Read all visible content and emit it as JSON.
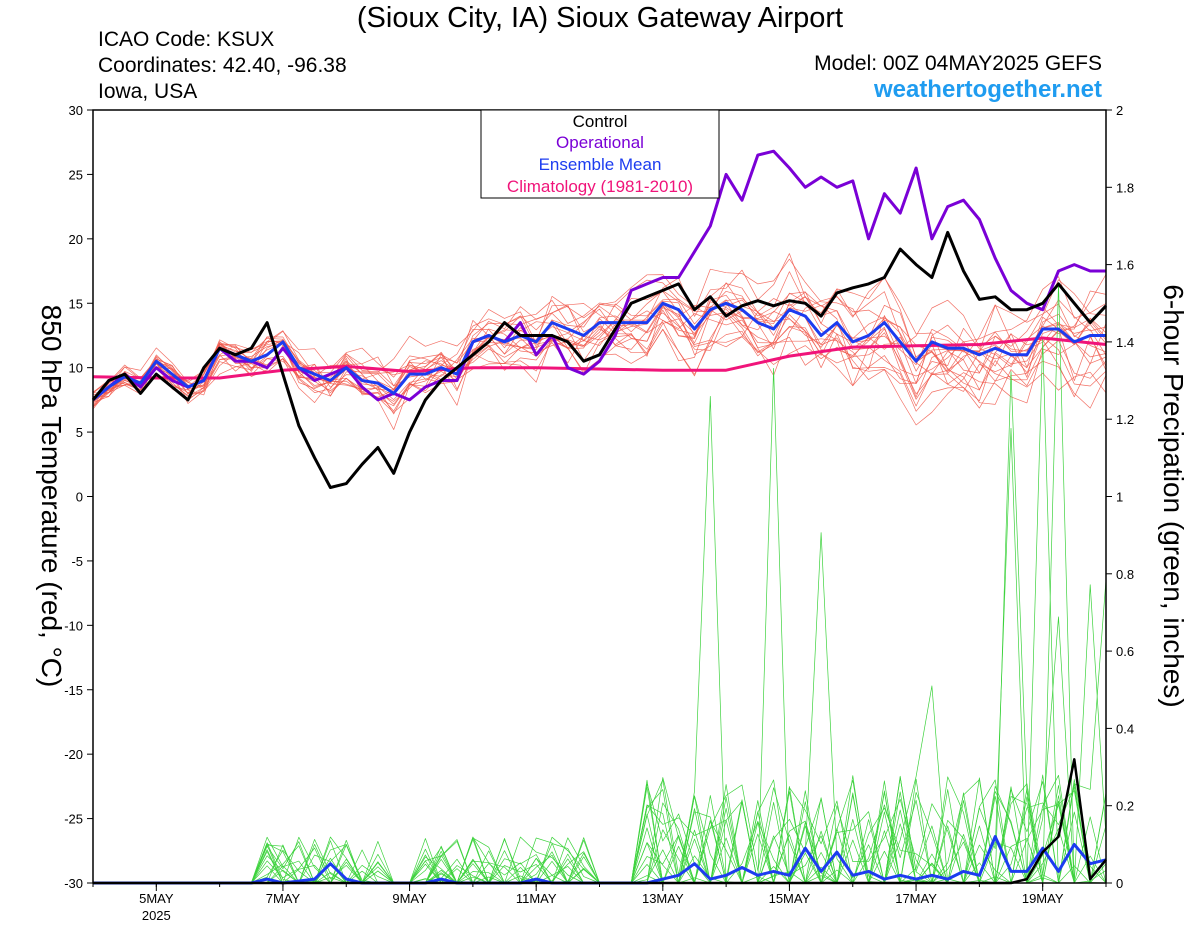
{
  "header": {
    "title": "(Sioux City, IA) Sioux Gateway Airport",
    "icao": "ICAO Code: KSUX",
    "coordinates": "Coordinates: 42.40, -96.38",
    "location": "Iowa, USA",
    "model": "Model: 00Z 04MAY2025 GEFS",
    "website": "weathertogether.net"
  },
  "colors": {
    "control": "#000000",
    "operational": "#7a00d6",
    "ensemble_mean": "#1c3cf0",
    "climatology": "#f0147a",
    "members_temp": "#f0574a",
    "members_precip": "#3cd23c",
    "website": "#1f9cf0"
  },
  "chart_data": {
    "type": "line",
    "x_axis": {
      "unit": "hours since 00Z 04MAY2025",
      "range": [
        0,
        384
      ],
      "ticks": [
        {
          "value": 24,
          "label": "5MAY",
          "sublabel": "2025"
        },
        {
          "value": 72,
          "label": "7MAY"
        },
        {
          "value": 120,
          "label": "9MAY"
        },
        {
          "value": 168,
          "label": "11MAY"
        },
        {
          "value": 216,
          "label": "13MAY"
        },
        {
          "value": 264,
          "label": "15MAY"
        },
        {
          "value": 312,
          "label": "17MAY"
        },
        {
          "value": 360,
          "label": "19MAY"
        }
      ]
    },
    "y_left": {
      "label": "850 hPa Temperature (red, °C)",
      "range": [
        -30,
        30
      ],
      "ticks": [
        "-30",
        "-25",
        "-20",
        "-15",
        "-10",
        "-5",
        "0",
        "5",
        "10",
        "15",
        "20",
        "25",
        "30"
      ]
    },
    "y_right": {
      "label": "6-hour Precipation (green, inches)",
      "range": [
        0,
        2
      ],
      "ticks": [
        "0",
        "0.2",
        "0.4",
        "0.6",
        "0.8",
        "1",
        "1.2",
        "1.4",
        "1.6",
        "1.8",
        "2"
      ]
    },
    "legend": {
      "placement": "top-center",
      "entries": [
        "Control",
        "Operational",
        "Ensemble Mean",
        "Climatology (1981-2010)"
      ]
    },
    "temperature_series": [
      {
        "name": "Control",
        "x": [
          0,
          6,
          12,
          18,
          24,
          30,
          36,
          42,
          48,
          54,
          60,
          66,
          72,
          78,
          84,
          90,
          96,
          102,
          108,
          114,
          120,
          126,
          132,
          138,
          144,
          150,
          156,
          162,
          168,
          174,
          180,
          186,
          192,
          198,
          204,
          210,
          216,
          222,
          228,
          234,
          240,
          246,
          252,
          258,
          264,
          270,
          276,
          282,
          288,
          294,
          300,
          306,
          312,
          318,
          324,
          330,
          336,
          342,
          348,
          354,
          360,
          366,
          372,
          378,
          384
        ],
        "y": [
          7.5,
          9.0,
          9.5,
          8.0,
          9.5,
          8.5,
          7.5,
          10.0,
          11.5,
          11.0,
          11.5,
          13.5,
          9.5,
          5.5,
          3.0,
          0.7,
          1.0,
          2.5,
          3.8,
          1.8,
          5.0,
          7.5,
          9.0,
          10.0,
          11.0,
          12.0,
          13.5,
          12.5,
          12.5,
          12.5,
          12.0,
          10.5,
          11.0,
          13.0,
          15.0,
          15.5,
          16.0,
          16.5,
          14.5,
          15.5,
          14.0,
          14.8,
          15.2,
          14.8,
          15.2,
          15.0,
          14.0,
          15.8,
          16.2,
          16.5,
          17.0,
          19.2,
          18.0,
          17.0,
          20.5,
          17.5,
          15.3,
          15.5,
          14.5,
          14.5,
          15.0,
          16.5,
          15.0,
          13.5,
          14.8
        ]
      },
      {
        "name": "Operational",
        "x": [
          0,
          6,
          12,
          18,
          24,
          30,
          36,
          42,
          48,
          54,
          60,
          66,
          72,
          78,
          84,
          90,
          96,
          102,
          108,
          114,
          120,
          126,
          132,
          138,
          144,
          150,
          156,
          162,
          168,
          174,
          180,
          186,
          192,
          198,
          204,
          210,
          216,
          222,
          228,
          234,
          240,
          246,
          252,
          258,
          264,
          270,
          276,
          282,
          288,
          294,
          300,
          306,
          312,
          318,
          324,
          330,
          336,
          342,
          348,
          354,
          360,
          366,
          372,
          378,
          384
        ],
        "y": [
          7.5,
          8.5,
          9.5,
          8.5,
          10.0,
          9.0,
          8.5,
          9.0,
          11.5,
          10.5,
          10.5,
          10.0,
          11.5,
          10.0,
          9.0,
          9.5,
          10.0,
          8.5,
          7.5,
          8.0,
          7.5,
          8.5,
          9.0,
          9.0,
          12.0,
          12.5,
          12.0,
          13.5,
          11.0,
          12.5,
          10.0,
          9.5,
          10.5,
          12.5,
          16.0,
          16.5,
          17.0,
          17.0,
          19.0,
          21.0,
          25.0,
          23.0,
          26.5,
          26.8,
          25.5,
          24.0,
          24.8,
          24.0,
          24.5,
          20.0,
          23.5,
          22.0,
          25.5,
          20.0,
          22.5,
          23.0,
          21.5,
          18.5,
          16.0,
          15.0,
          14.5,
          17.5,
          18.0,
          17.5,
          17.5
        ]
      },
      {
        "name": "Ensemble Mean",
        "x": [
          0,
          6,
          12,
          18,
          24,
          30,
          36,
          42,
          48,
          54,
          60,
          66,
          72,
          78,
          84,
          90,
          96,
          102,
          108,
          114,
          120,
          126,
          132,
          138,
          144,
          150,
          156,
          162,
          168,
          174,
          180,
          186,
          192,
          198,
          204,
          210,
          216,
          222,
          228,
          234,
          240,
          246,
          252,
          258,
          264,
          270,
          276,
          282,
          288,
          294,
          300,
          306,
          312,
          318,
          324,
          330,
          336,
          342,
          348,
          354,
          360,
          366,
          372,
          378,
          384
        ],
        "y": [
          7.5,
          8.5,
          9.3,
          8.8,
          10.5,
          9.5,
          8.5,
          9.0,
          11.5,
          11.0,
          10.5,
          11.0,
          12.0,
          10.0,
          9.5,
          9.0,
          10.0,
          9.0,
          8.8,
          8.0,
          9.5,
          9.5,
          10.0,
          9.5,
          12.0,
          12.5,
          12.0,
          12.5,
          12.0,
          13.5,
          13.0,
          12.5,
          13.5,
          13.5,
          13.5,
          13.5,
          15.0,
          14.5,
          13.0,
          14.5,
          15.0,
          14.5,
          13.5,
          13.0,
          14.5,
          14.0,
          12.5,
          13.5,
          12.0,
          12.5,
          13.5,
          12.0,
          10.5,
          12.0,
          11.5,
          11.5,
          11.0,
          11.5,
          11.0,
          11.0,
          13.0,
          13.0,
          12.0,
          12.5,
          12.5
        ]
      },
      {
        "name": "Climatology (1981-2010)",
        "x": [
          0,
          24,
          48,
          72,
          96,
          120,
          144,
          168,
          192,
          216,
          240,
          264,
          288,
          312,
          336,
          360,
          384
        ],
        "y": [
          9.3,
          9.2,
          9.2,
          9.8,
          10.1,
          9.7,
          10.0,
          10.0,
          9.9,
          9.8,
          9.8,
          10.9,
          11.6,
          11.7,
          11.8,
          12.3,
          11.8
        ]
      }
    ],
    "member_count": 20,
    "precip_series": [
      {
        "name": "Control",
        "x": [
          0,
          264,
          336,
          348,
          354,
          360,
          366,
          372,
          378,
          384
        ],
        "y": [
          0,
          0,
          0,
          0,
          0.01,
          0.08,
          0.12,
          0.32,
          0.01,
          0.06
        ]
      },
      {
        "name": "Ensemble Mean",
        "x": [
          0,
          48,
          54,
          60,
          66,
          72,
          84,
          90,
          96,
          102,
          108,
          114,
          120,
          126,
          132,
          138,
          144,
          150,
          156,
          162,
          168,
          174,
          180,
          186,
          192,
          198,
          204,
          210,
          216,
          222,
          228,
          234,
          240,
          246,
          252,
          258,
          264,
          270,
          276,
          282,
          288,
          294,
          300,
          306,
          312,
          318,
          324,
          330,
          336,
          342,
          348,
          354,
          360,
          366,
          372,
          378,
          384
        ],
        "y": [
          0,
          0,
          0,
          0,
          0.01,
          0,
          0.01,
          0.05,
          0.01,
          0,
          0,
          0,
          0,
          0,
          0.01,
          0,
          0,
          0,
          0,
          0,
          0.01,
          0,
          0,
          0,
          0,
          0,
          0,
          0,
          0.01,
          0.02,
          0.05,
          0.01,
          0.02,
          0.04,
          0.02,
          0.03,
          0.02,
          0.09,
          0.03,
          0.08,
          0.02,
          0.03,
          0.01,
          0.02,
          0.01,
          0.02,
          0.01,
          0.03,
          0.02,
          0.12,
          0.03,
          0.03,
          0.09,
          0.03,
          0.1,
          0.05,
          0.06
        ]
      }
    ]
  }
}
